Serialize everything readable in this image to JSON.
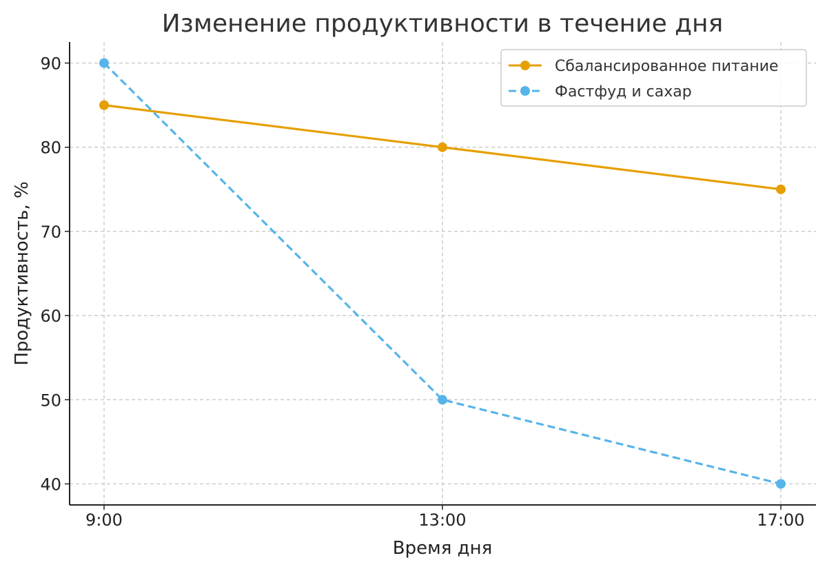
{
  "chart_data": {
    "type": "line",
    "title": "Изменение продуктивности в течение дня",
    "xlabel": "Время дня",
    "ylabel": "Продуктивность, %",
    "categories": [
      "9:00",
      "13:00",
      "17:00"
    ],
    "y_ticks": [
      40,
      50,
      60,
      70,
      80,
      90
    ],
    "ylim": [
      37.5,
      92.5
    ],
    "grid": true,
    "legend_position": "top-right",
    "series": [
      {
        "name": "Сбалансированное питание",
        "values": [
          85,
          80,
          75
        ],
        "color": "#E69F00",
        "line_style": "solid",
        "marker": "circle"
      },
      {
        "name": "Фастфуд и сахар",
        "values": [
          90,
          50,
          40
        ],
        "color": "#56B4E9",
        "line_style": "dashed",
        "marker": "circle"
      }
    ]
  }
}
